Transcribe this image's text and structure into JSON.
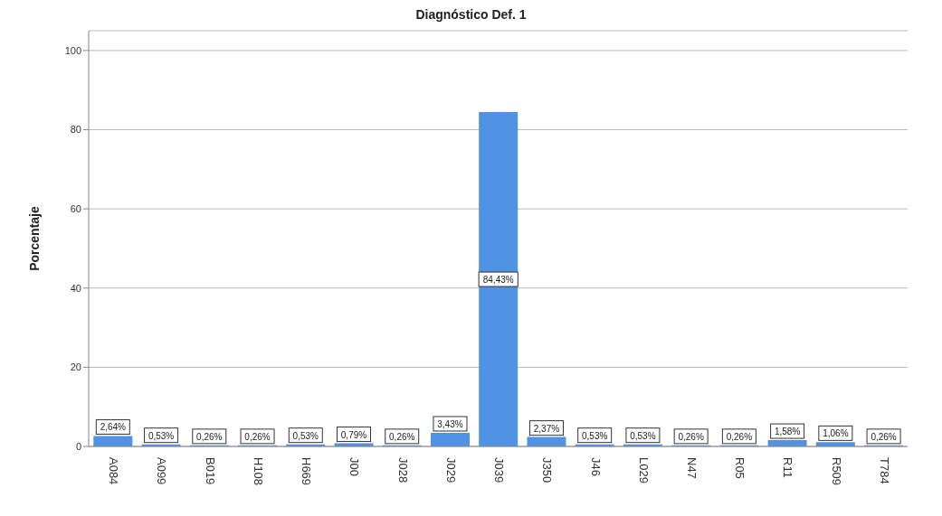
{
  "chart_data": {
    "type": "bar",
    "title": "Diagnóstico Def. 1",
    "ylabel": "Porcentaje",
    "categories": [
      "A084",
      "A099",
      "B019",
      "H108",
      "H669",
      "J00",
      "J028",
      "J029",
      "J039",
      "J350",
      "J46",
      "L029",
      "N47",
      "R05",
      "R11",
      "R509",
      "T784"
    ],
    "values": [
      2.64,
      0.53,
      0.26,
      0.26,
      0.53,
      0.79,
      0.26,
      3.43,
      84.43,
      2.37,
      0.53,
      0.53,
      0.26,
      0.26,
      1.58,
      1.06,
      0.26
    ],
    "value_labels": [
      "2,64%",
      "0,53%",
      "0,26%",
      "0,26%",
      "0,53%",
      "0,79%",
      "0,26%",
      "3,43%",
      "84,43%",
      "2,37%",
      "0,53%",
      "0,53%",
      "0,26%",
      "0,26%",
      "1,58%",
      "1,06%",
      "0,26%"
    ],
    "color": "#5092e3",
    "ylim": [
      0,
      105
    ],
    "yticks": [
      0,
      20,
      40,
      60,
      80,
      100
    ],
    "grid": "y",
    "legend": false
  }
}
